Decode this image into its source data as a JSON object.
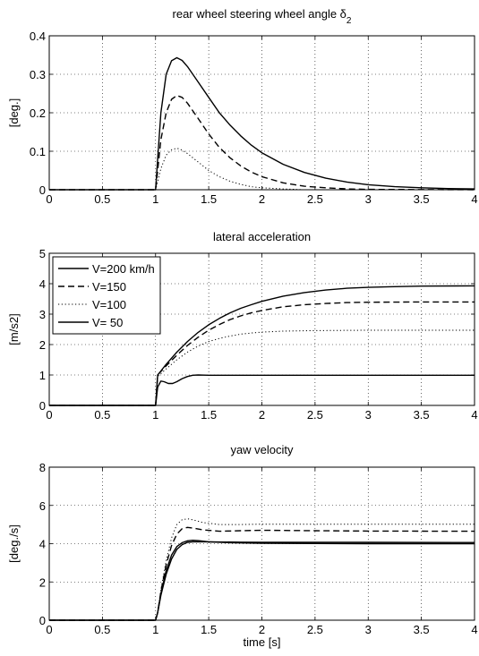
{
  "chart_data": [
    {
      "type": "line",
      "title": "rear wheel steering wheel angle δ",
      "title_subscript": "2",
      "xlabel": "",
      "ylabel": "[deg.]",
      "xlim": [
        0,
        4
      ],
      "ylim": [
        0,
        0.4
      ],
      "xticks": [
        "0",
        "0.5",
        "1",
        "1.5",
        "2",
        "2.5",
        "3",
        "3.5",
        "4"
      ],
      "yticks": [
        "0",
        "0.1",
        "0.2",
        "0.3",
        "0.4"
      ],
      "grid": true,
      "series": [
        {
          "style": "solid",
          "points": [
            [
              0,
              0
            ],
            [
              1.0,
              0
            ],
            [
              1.02,
              0.08
            ],
            [
              1.05,
              0.2
            ],
            [
              1.1,
              0.3
            ],
            [
              1.15,
              0.335
            ],
            [
              1.2,
              0.343
            ],
            [
              1.25,
              0.336
            ],
            [
              1.3,
              0.32
            ],
            [
              1.4,
              0.28
            ],
            [
              1.5,
              0.24
            ],
            [
              1.6,
              0.2
            ],
            [
              1.7,
              0.168
            ],
            [
              1.8,
              0.14
            ],
            [
              1.9,
              0.116
            ],
            [
              2.0,
              0.096
            ],
            [
              2.2,
              0.066
            ],
            [
              2.4,
              0.045
            ],
            [
              2.6,
              0.03
            ],
            [
              2.8,
              0.02
            ],
            [
              3.0,
              0.013
            ],
            [
              3.25,
              0.008
            ],
            [
              3.5,
              0.005
            ],
            [
              3.75,
              0.003
            ],
            [
              4.0,
              0.002
            ]
          ]
        },
        {
          "style": "dashed",
          "points": [
            [
              0,
              0
            ],
            [
              1.0,
              0
            ],
            [
              1.02,
              0.05
            ],
            [
              1.05,
              0.13
            ],
            [
              1.1,
              0.2
            ],
            [
              1.15,
              0.235
            ],
            [
              1.2,
              0.245
            ],
            [
              1.25,
              0.24
            ],
            [
              1.3,
              0.225
            ],
            [
              1.4,
              0.185
            ],
            [
              1.5,
              0.145
            ],
            [
              1.6,
              0.11
            ],
            [
              1.7,
              0.083
            ],
            [
              1.8,
              0.062
            ],
            [
              1.9,
              0.046
            ],
            [
              2.0,
              0.034
            ],
            [
              2.2,
              0.018
            ],
            [
              2.4,
              0.009
            ],
            [
              2.6,
              0.005
            ],
            [
              2.8,
              0.002
            ],
            [
              3.0,
              0.001
            ],
            [
              4.0,
              0
            ]
          ]
        },
        {
          "style": "dotted",
          "points": [
            [
              0,
              0
            ],
            [
              1.0,
              0
            ],
            [
              1.02,
              0.02
            ],
            [
              1.05,
              0.055
            ],
            [
              1.1,
              0.09
            ],
            [
              1.15,
              0.104
            ],
            [
              1.2,
              0.108
            ],
            [
              1.25,
              0.103
            ],
            [
              1.3,
              0.094
            ],
            [
              1.4,
              0.072
            ],
            [
              1.5,
              0.05
            ],
            [
              1.6,
              0.034
            ],
            [
              1.7,
              0.022
            ],
            [
              1.8,
              0.014
            ],
            [
              1.9,
              0.008
            ],
            [
              2.0,
              0.005
            ],
            [
              2.2,
              0.002
            ],
            [
              2.4,
              0.0
            ],
            [
              4.0,
              0
            ]
          ]
        }
      ]
    },
    {
      "type": "line",
      "title": "lateral acceleration",
      "xlabel": "",
      "ylabel": "[m/s2]",
      "xlim": [
        0,
        4
      ],
      "ylim": [
        0,
        5
      ],
      "xticks": [
        "0",
        "0.5",
        "1",
        "1.5",
        "2",
        "2.5",
        "3",
        "3.5",
        "4"
      ],
      "yticks": [
        "0",
        "1",
        "2",
        "3",
        "4",
        "5"
      ],
      "grid": true,
      "legend": {
        "placement": "top-left",
        "entries": [
          {
            "label": "V=200 km/h",
            "style": "solid"
          },
          {
            "label": "V=150",
            "style": "dashed"
          },
          {
            "label": "V=100",
            "style": "dotted"
          },
          {
            "label": "V= 50",
            "style": "solid"
          }
        ]
      },
      "series": [
        {
          "style": "solid",
          "points": [
            [
              0,
              0
            ],
            [
              1.0,
              0
            ],
            [
              1.02,
              1.0
            ],
            [
              1.1,
              1.35
            ],
            [
              1.2,
              1.75
            ],
            [
              1.3,
              2.1
            ],
            [
              1.4,
              2.4
            ],
            [
              1.5,
              2.65
            ],
            [
              1.6,
              2.86
            ],
            [
              1.7,
              3.04
            ],
            [
              1.8,
              3.19
            ],
            [
              1.9,
              3.31
            ],
            [
              2.0,
              3.42
            ],
            [
              2.2,
              3.59
            ],
            [
              2.4,
              3.71
            ],
            [
              2.6,
              3.79
            ],
            [
              2.8,
              3.85
            ],
            [
              3.0,
              3.88
            ],
            [
              3.2,
              3.9
            ],
            [
              3.5,
              3.92
            ],
            [
              4.0,
              3.93
            ]
          ]
        },
        {
          "style": "dashed",
          "points": [
            [
              0,
              0
            ],
            [
              1.0,
              0
            ],
            [
              1.02,
              1.0
            ],
            [
              1.1,
              1.3
            ],
            [
              1.2,
              1.65
            ],
            [
              1.3,
              1.97
            ],
            [
              1.4,
              2.24
            ],
            [
              1.5,
              2.47
            ],
            [
              1.6,
              2.66
            ],
            [
              1.7,
              2.82
            ],
            [
              1.8,
              2.94
            ],
            [
              1.9,
              3.04
            ],
            [
              2.0,
              3.12
            ],
            [
              2.2,
              3.24
            ],
            [
              2.4,
              3.31
            ],
            [
              2.6,
              3.35
            ],
            [
              2.8,
              3.38
            ],
            [
              3.0,
              3.39
            ],
            [
              3.5,
              3.4
            ],
            [
              4.0,
              3.4
            ]
          ]
        },
        {
          "style": "dotted",
          "points": [
            [
              0,
              0
            ],
            [
              1.0,
              0
            ],
            [
              1.02,
              0.95
            ],
            [
              1.1,
              1.2
            ],
            [
              1.2,
              1.5
            ],
            [
              1.3,
              1.75
            ],
            [
              1.4,
              1.95
            ],
            [
              1.5,
              2.1
            ],
            [
              1.6,
              2.2
            ],
            [
              1.7,
              2.28
            ],
            [
              1.8,
              2.34
            ],
            [
              1.9,
              2.38
            ],
            [
              2.0,
              2.41
            ],
            [
              2.2,
              2.44
            ],
            [
              2.5,
              2.46
            ],
            [
              3.0,
              2.47
            ],
            [
              4.0,
              2.47
            ]
          ]
        },
        {
          "style": "solid",
          "points": [
            [
              0,
              0
            ],
            [
              1.0,
              0
            ],
            [
              1.02,
              0.6
            ],
            [
              1.05,
              0.8
            ],
            [
              1.08,
              0.78
            ],
            [
              1.12,
              0.72
            ],
            [
              1.16,
              0.72
            ],
            [
              1.2,
              0.78
            ],
            [
              1.25,
              0.88
            ],
            [
              1.3,
              0.95
            ],
            [
              1.35,
              0.99
            ],
            [
              1.4,
              1.0
            ],
            [
              1.5,
              0.99
            ],
            [
              1.7,
              0.99
            ],
            [
              2.0,
              0.99
            ],
            [
              3.0,
              0.99
            ],
            [
              4.0,
              0.99
            ]
          ]
        }
      ]
    },
    {
      "type": "line",
      "title": "yaw velocity",
      "xlabel": "time [s]",
      "ylabel": "[deg./s]",
      "xlim": [
        0,
        4
      ],
      "ylim": [
        0,
        8
      ],
      "xticks": [
        "0",
        "0.5",
        "1",
        "1.5",
        "2",
        "2.5",
        "3",
        "3.5",
        "4"
      ],
      "yticks": [
        "0",
        "2",
        "4",
        "6",
        "8"
      ],
      "grid": true,
      "series": [
        {
          "style": "solid",
          "points": [
            [
              0,
              0
            ],
            [
              1.0,
              0
            ],
            [
              1.02,
              0.4
            ],
            [
              1.05,
              1.4
            ],
            [
              1.1,
              2.6
            ],
            [
              1.15,
              3.4
            ],
            [
              1.2,
              3.85
            ],
            [
              1.25,
              4.05
            ],
            [
              1.3,
              4.15
            ],
            [
              1.35,
              4.18
            ],
            [
              1.4,
              4.16
            ],
            [
              1.5,
              4.1
            ],
            [
              1.7,
              4.05
            ],
            [
              2.0,
              4.02
            ],
            [
              3.0,
              4.0
            ],
            [
              4.0,
              4.0
            ]
          ]
        },
        {
          "style": "dashed",
          "points": [
            [
              0,
              0
            ],
            [
              1.0,
              0
            ],
            [
              1.02,
              0.4
            ],
            [
              1.05,
              1.5
            ],
            [
              1.1,
              2.9
            ],
            [
              1.15,
              3.9
            ],
            [
              1.2,
              4.5
            ],
            [
              1.25,
              4.78
            ],
            [
              1.3,
              4.85
            ],
            [
              1.35,
              4.82
            ],
            [
              1.45,
              4.72
            ],
            [
              1.6,
              4.65
            ],
            [
              1.8,
              4.68
            ],
            [
              2.0,
              4.7
            ],
            [
              2.5,
              4.68
            ],
            [
              3.0,
              4.66
            ],
            [
              4.0,
              4.65
            ]
          ]
        },
        {
          "style": "dotted",
          "points": [
            [
              0,
              0
            ],
            [
              1.0,
              0
            ],
            [
              1.02,
              0.4
            ],
            [
              1.05,
              1.6
            ],
            [
              1.1,
              3.1
            ],
            [
              1.15,
              4.3
            ],
            [
              1.2,
              5.0
            ],
            [
              1.25,
              5.25
            ],
            [
              1.3,
              5.3
            ],
            [
              1.35,
              5.25
            ],
            [
              1.45,
              5.1
            ],
            [
              1.6,
              5.0
            ],
            [
              1.8,
              5.0
            ],
            [
              2.0,
              5.02
            ],
            [
              3.0,
              5.02
            ],
            [
              4.0,
              5.02
            ]
          ]
        },
        {
          "style": "solid",
          "points": [
            [
              0,
              0
            ],
            [
              1.0,
              0
            ],
            [
              1.02,
              0.4
            ],
            [
              1.05,
              1.3
            ],
            [
              1.1,
              2.4
            ],
            [
              1.15,
              3.2
            ],
            [
              1.2,
              3.7
            ],
            [
              1.25,
              3.95
            ],
            [
              1.3,
              4.07
            ],
            [
              1.35,
              4.1
            ],
            [
              1.5,
              4.1
            ],
            [
              1.8,
              4.08
            ],
            [
              2.0,
              4.07
            ],
            [
              3.0,
              4.07
            ],
            [
              4.0,
              4.06
            ]
          ]
        }
      ]
    }
  ]
}
